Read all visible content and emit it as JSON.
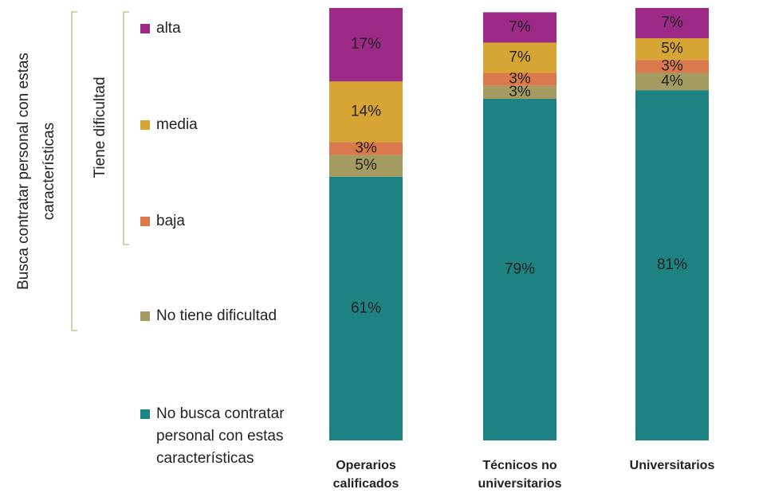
{
  "chart_data": {
    "type": "stacked_bar",
    "categories": [
      [
        "Operarios",
        "calificados"
      ],
      [
        "Técnicos no",
        "universitarios"
      ],
      [
        "Universitarios"
      ]
    ],
    "ylim": [
      0,
      100
    ],
    "series": [
      {
        "name": "No busca contratar personal con estas características",
        "color": "#1f8282",
        "values": [
          61,
          79,
          81
        ],
        "value_labels": [
          "61%",
          "79%",
          "81%"
        ]
      },
      {
        "name": "No tiene dificultad",
        "color": "#a39b60",
        "values": [
          5,
          3,
          4
        ],
        "value_labels": [
          "5%",
          "3%",
          "4%"
        ]
      },
      {
        "name": "baja",
        "color": "#d9794c",
        "values": [
          3,
          3,
          3
        ],
        "value_labels": [
          "3%",
          "3%",
          "3%"
        ]
      },
      {
        "name": "media",
        "color": "#d6a533",
        "values": [
          14,
          7,
          5
        ],
        "value_labels": [
          "14%",
          "7%",
          "5%"
        ]
      },
      {
        "name": "alta",
        "color": "#9c2a86",
        "values": [
          17,
          7,
          7
        ],
        "value_labels": [
          "17%",
          "7%",
          "7%"
        ]
      }
    ],
    "group_labels": {
      "inner": "Tiene dificultad",
      "outer": [
        "Busca contratar personal con estas",
        "características"
      ]
    }
  }
}
